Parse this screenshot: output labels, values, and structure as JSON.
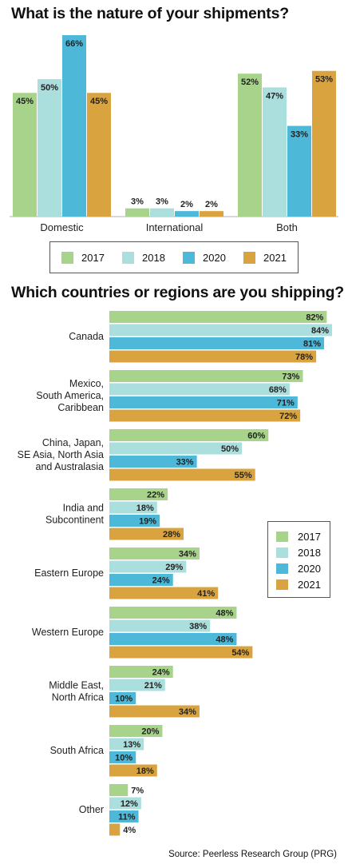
{
  "colors": {
    "2017": "#a7d48a",
    "2018": "#aadfdd",
    "2020": "#4db8d8",
    "2021": "#d9a43f"
  },
  "chart_data": [
    {
      "type": "bar",
      "title": "What is the nature of your shipments?",
      "categories": [
        "Domestic",
        "International",
        "Both"
      ],
      "series": [
        {
          "name": "2017",
          "values": [
            45,
            3,
            52
          ]
        },
        {
          "name": "2018",
          "values": [
            50,
            3,
            47
          ]
        },
        {
          "name": "2020",
          "values": [
            66,
            2,
            33
          ]
        },
        {
          "name": "2021",
          "values": [
            45,
            2,
            53
          ]
        }
      ],
      "unit": "%",
      "ylim": [
        0,
        66
      ],
      "legend": "bottom",
      "grid": false
    },
    {
      "type": "bar",
      "orientation": "horizontal",
      "title": "Which countries or regions are you shipping?",
      "categories": [
        "Canada",
        "Mexico,\nSouth America,\nCaribbean",
        "China, Japan,\nSE Asia, North Asia\nand Australasia",
        "India and\nSubcontinent",
        "Eastern Europe",
        "Western Europe",
        "Middle East,\nNorth Africa",
        "South Africa",
        "Other"
      ],
      "series": [
        {
          "name": "2017",
          "values": [
            82,
            73,
            60,
            22,
            34,
            48,
            24,
            20,
            7
          ]
        },
        {
          "name": "2018",
          "values": [
            84,
            68,
            50,
            18,
            29,
            38,
            21,
            13,
            12
          ]
        },
        {
          "name": "2020",
          "values": [
            81,
            71,
            33,
            19,
            24,
            48,
            10,
            10,
            11
          ]
        },
        {
          "name": "2021",
          "values": [
            78,
            72,
            55,
            28,
            41,
            54,
            34,
            18,
            4
          ]
        }
      ],
      "unit": "%",
      "xlim": [
        0,
        84
      ],
      "legend": "right",
      "grid": false
    }
  ],
  "source": "Source: Peerless Research Group (PRG)"
}
